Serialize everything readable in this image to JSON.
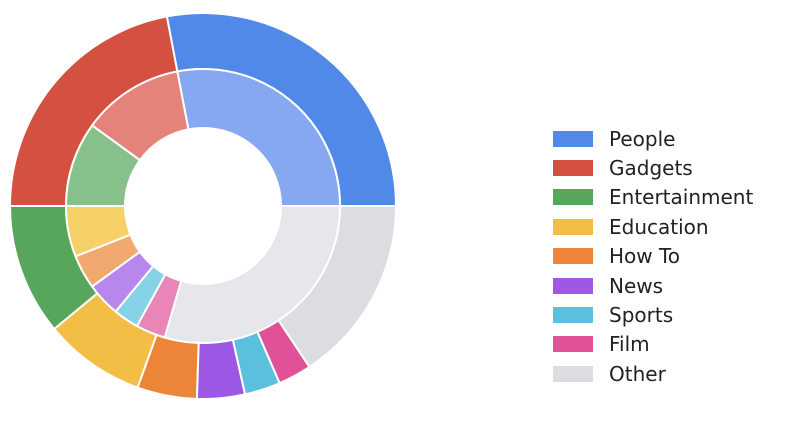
{
  "chart_data": {
    "type": "pie",
    "variant": "nested-donut",
    "title": "",
    "categories": [
      "People",
      "Gadgets",
      "Entertainment",
      "Education",
      "How To",
      "News",
      "Sports",
      "Film",
      "Other"
    ],
    "colors": [
      "#5189E9",
      "#D45040",
      "#58A65C",
      "#F2BE45",
      "#ED8538",
      "#9E58E6",
      "#5BC0DE",
      "#E05198",
      "#DCDDE1"
    ],
    "inner_colors": [
      "#85A8F0",
      "#E3837A",
      "#86C08A",
      "#F6D168",
      "#F1A96F",
      "#B887EE",
      "#86D3E8",
      "#EA86B7",
      "#E6E7EB"
    ],
    "series": [
      {
        "name": "",
        "ring": "outer",
        "values": [
          28,
          22,
          11,
          8.5,
          5,
          4,
          3,
          2.8,
          15.7
        ]
      },
      {
        "name": "",
        "ring": "inner",
        "values": [
          28,
          12,
          10,
          6,
          4,
          4,
          3,
          3.5,
          29.5
        ]
      }
    ],
    "legend": {
      "position": "right"
    }
  }
}
